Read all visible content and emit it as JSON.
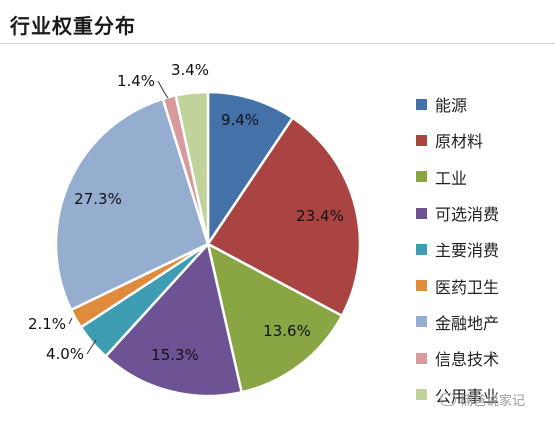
{
  "title": "行业权重分布",
  "watermark": "楠爸说家记",
  "chart_data": {
    "type": "pie",
    "title": "行业权重分布",
    "start_angle_deg": 0,
    "direction": "clockwise",
    "legend_position": "right",
    "slices": [
      {
        "label": "能源",
        "value": 9.4,
        "value_label": "9.4%",
        "color": "#4472a8"
      },
      {
        "label": "原材料",
        "value": 23.4,
        "value_label": "23.4%",
        "color": "#a94442"
      },
      {
        "label": "工业",
        "value": 13.6,
        "value_label": "13.6%",
        "color": "#89a544"
      },
      {
        "label": "可选消费",
        "value": 15.3,
        "value_label": "15.3%",
        "color": "#6e5394"
      },
      {
        "label": "主要消费",
        "value": 4.0,
        "value_label": "4.0%",
        "color": "#3e9cb3"
      },
      {
        "label": "医药卫生",
        "value": 2.1,
        "value_label": "2.1%",
        "color": "#e08a3c"
      },
      {
        "label": "金融地产",
        "value": 27.3,
        "value_label": "27.3%",
        "color": "#95adcf"
      },
      {
        "label": "信息技术",
        "value": 1.4,
        "value_label": "1.4%",
        "color": "#d89a9c"
      },
      {
        "label": "公用事业",
        "value": 3.4,
        "value_label": "3.4%",
        "color": "#bfd39b"
      }
    ]
  }
}
